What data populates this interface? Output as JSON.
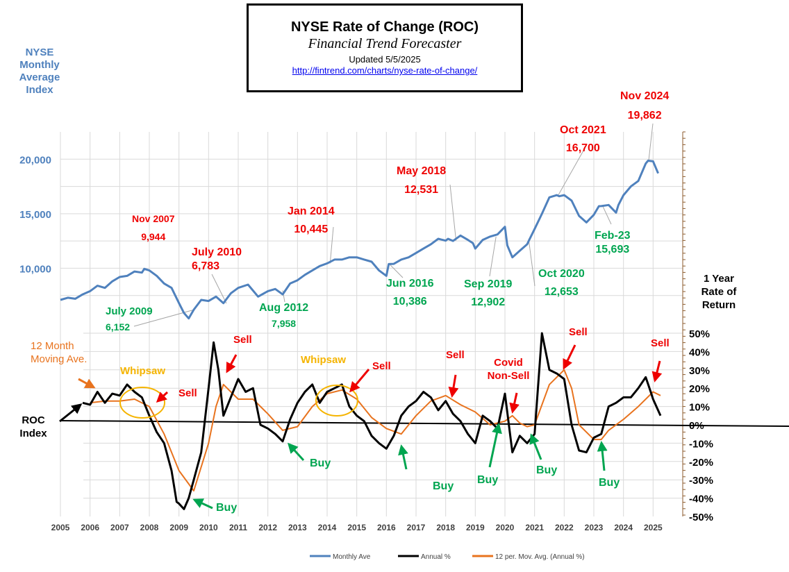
{
  "header": {
    "title": "NYSE  Rate of Change (ROC)",
    "subtitle": "Financial Trend Forecaster",
    "updated": "Updated  5/5/2025",
    "url": "http://fintrend.com/charts/nyse-rate-of-change/"
  },
  "labels": {
    "left_axis_title": "NYSE Monthly Average Index",
    "right_axis_title": "1 Year Rate of Return",
    "roc_index": "ROC Index",
    "moving_ave": "12 Month Moving Ave."
  },
  "colors": {
    "index_line": "#4f81bd",
    "roc_line": "#000000",
    "moving_avg_line": "#e8731e",
    "sell_label": "#ee0000",
    "buy_label": "#00a550",
    "whipsaw": "#f5b400"
  },
  "legend": {
    "position": "bottom",
    "items": [
      {
        "label": "Monthly Ave",
        "color": "#4f81bd"
      },
      {
        "label": "Annual %",
        "color": "#000000"
      },
      {
        "label": "12 per. Mov. Avg. (Annual %)",
        "color": "#e8731e"
      }
    ]
  },
  "chart_data": [
    {
      "type": "line",
      "series": [
        {
          "name": "Monthly Ave",
          "x": [
            2005.0,
            2005.25,
            2005.5,
            2005.75,
            2006.0,
            2006.25,
            2006.5,
            2006.75,
            2007.0,
            2007.25,
            2007.5,
            2007.75,
            2007.83,
            2008.0,
            2008.25,
            2008.5,
            2008.75,
            2009.0,
            2009.17,
            2009.33,
            2009.5,
            2009.75,
            2010.0,
            2010.25,
            2010.5,
            2010.75,
            2011.0,
            2011.33,
            2011.67,
            2012.0,
            2012.25,
            2012.5,
            2012.75,
            2013.0,
            2013.25,
            2013.5,
            2013.75,
            2014.0,
            2014.25,
            2014.5,
            2014.75,
            2015.0,
            2015.25,
            2015.5,
            2015.75,
            2016.0,
            2016.08,
            2016.25,
            2016.5,
            2016.75,
            2017.0,
            2017.25,
            2017.5,
            2017.75,
            2018.0,
            2018.08,
            2018.25,
            2018.5,
            2018.75,
            2018.92,
            2019.0,
            2019.25,
            2019.5,
            2019.75,
            2020.0,
            2020.08,
            2020.25,
            2020.5,
            2020.75,
            2020.83,
            2021.0,
            2021.25,
            2021.5,
            2021.75,
            2021.83,
            2022.0,
            2022.25,
            2022.5,
            2022.75,
            2023.0,
            2023.17,
            2023.25,
            2023.5,
            2023.75,
            2023.83,
            2024.0,
            2024.25,
            2024.5,
            2024.75,
            2024.83,
            2025.0,
            2025.17
          ],
          "values": [
            7100,
            7300,
            7200,
            7600,
            7900,
            8400,
            8200,
            8800,
            9200,
            9300,
            9700,
            9600,
            9944,
            9800,
            9300,
            8600,
            8200,
            6800,
            5900,
            5400,
            6200,
            7100,
            7000,
            7400,
            6800,
            7700,
            8200,
            8500,
            7400,
            7900,
            8100,
            7600,
            8600,
            8900,
            9400,
            9800,
            10200,
            10445,
            10800,
            10800,
            11000,
            11000,
            10800,
            10600,
            9800,
            9300,
            10386,
            10400,
            10800,
            11000,
            11400,
            11800,
            12200,
            12700,
            12531,
            12700,
            12500,
            13000,
            12600,
            12300,
            11800,
            12600,
            12902,
            13100,
            13800,
            12100,
            11000,
            11600,
            12200,
            12653,
            13600,
            15000,
            16500,
            16700,
            16600,
            16700,
            16200,
            14800,
            14200,
            14900,
            15693,
            15700,
            15800,
            15100,
            15800,
            16700,
            17500,
            18000,
            19600,
            19862,
            19800,
            18700
          ]
        }
      ],
      "ylim": [
        5000,
        22500
      ],
      "yticks": [
        "10,000",
        "15,000",
        "20,000"
      ],
      "annotations": [
        {
          "date": "Nov 2007",
          "value": "9,944",
          "color": "red"
        },
        {
          "date": "July 2009",
          "value": "6,152",
          "color": "green"
        },
        {
          "date": "July 2010",
          "value": "6,783",
          "color": "red"
        },
        {
          "date": "Aug 2012",
          "value": "7,958",
          "color": "green"
        },
        {
          "date": "Jan 2014",
          "value": "10,445",
          "color": "red"
        },
        {
          "date": "Jun 2016",
          "value": "10,386",
          "color": "green"
        },
        {
          "date": "May 2018",
          "value": "12,531",
          "color": "red"
        },
        {
          "date": "Sep 2019",
          "value": "12,902",
          "color": "green"
        },
        {
          "date": "Oct 2020",
          "value": "12,653",
          "color": "green"
        },
        {
          "date": "Oct 2021",
          "value": "16,700",
          "color": "red"
        },
        {
          "date": "Feb-23",
          "value": "15,693",
          "color": "green"
        },
        {
          "date": "Nov 2024",
          "value": "19,862",
          "color": "red"
        }
      ]
    },
    {
      "type": "line",
      "series": [
        {
          "name": "Annual %",
          "x": [
            2005.75,
            2006.0,
            2006.25,
            2006.5,
            2006.75,
            2007.0,
            2007.25,
            2007.5,
            2007.75,
            2008.0,
            2008.25,
            2008.5,
            2008.75,
            2008.92,
            2009.0,
            2009.17,
            2009.33,
            2009.5,
            2009.75,
            2010.0,
            2010.17,
            2010.33,
            2010.5,
            2010.75,
            2011.0,
            2011.25,
            2011.5,
            2011.75,
            2012.0,
            2012.25,
            2012.5,
            2012.75,
            2013.0,
            2013.25,
            2013.5,
            2013.75,
            2014.0,
            2014.25,
            2014.5,
            2014.75,
            2015.0,
            2015.25,
            2015.5,
            2015.75,
            2016.0,
            2016.25,
            2016.5,
            2016.75,
            2017.0,
            2017.25,
            2017.5,
            2017.75,
            2018.0,
            2018.25,
            2018.5,
            2018.75,
            2019.0,
            2019.25,
            2019.5,
            2019.75,
            2020.0,
            2020.25,
            2020.5,
            2020.75,
            2021.0,
            2021.25,
            2021.5,
            2021.75,
            2022.0,
            2022.25,
            2022.5,
            2022.75,
            2023.0,
            2023.25,
            2023.5,
            2023.75,
            2024.0,
            2024.25,
            2024.5,
            2024.75,
            2024.92,
            2025.0,
            2025.25
          ],
          "values": [
            12,
            11,
            18,
            12,
            17,
            16,
            22,
            18,
            15,
            5,
            -4,
            -10,
            -25,
            -42,
            -43,
            -46,
            -40,
            -30,
            -15,
            20,
            45,
            30,
            5,
            15,
            25,
            18,
            20,
            0,
            -2,
            -5,
            -9,
            3,
            12,
            18,
            22,
            12,
            18,
            20,
            22,
            10,
            5,
            2,
            -6,
            -10,
            -13,
            -6,
            5,
            10,
            13,
            18,
            15,
            8,
            13,
            6,
            2,
            -5,
            -10,
            5,
            2,
            -2,
            17,
            -15,
            -6,
            -10,
            -5,
            50,
            30,
            28,
            25,
            0,
            -14,
            -15,
            -7,
            -5,
            10,
            12,
            15,
            15,
            20,
            26,
            18,
            14,
            5
          ]
        },
        {
          "name": "12 per. Mov. Avg. (Annual %)",
          "x": [
            2006.0,
            2006.5,
            2007.0,
            2007.5,
            2008.0,
            2008.5,
            2009.0,
            2009.5,
            2010.0,
            2010.25,
            2010.5,
            2011.0,
            2011.5,
            2012.0,
            2012.5,
            2013.0,
            2013.5,
            2014.0,
            2014.5,
            2015.0,
            2015.5,
            2016.0,
            2016.5,
            2017.0,
            2017.5,
            2018.0,
            2018.5,
            2019.0,
            2019.5,
            2020.0,
            2020.25,
            2020.5,
            2020.75,
            2021.0,
            2021.5,
            2022.0,
            2022.25,
            2022.5,
            2023.0,
            2023.25,
            2023.5,
            2024.0,
            2024.5,
            2025.0,
            2025.25
          ],
          "values": [
            12,
            13,
            13,
            14,
            10,
            -5,
            -25,
            -36,
            -10,
            10,
            22,
            14,
            14,
            6,
            -3,
            -1,
            10,
            17,
            19,
            14,
            4,
            -2,
            -5,
            5,
            13,
            16,
            11,
            7,
            0,
            2,
            5,
            1,
            -1,
            0,
            22,
            30,
            20,
            0,
            -8,
            -8,
            -3,
            3,
            10,
            18,
            16
          ]
        }
      ],
      "ylim": [
        -50,
        50
      ],
      "yticks": [
        "50%",
        "40%",
        "30%",
        "20%",
        "10%",
        "0%",
        "-10%",
        "-20%",
        "-30%",
        "-40%",
        "-50%"
      ],
      "annotations": [
        {
          "text": "Sell",
          "color": "red"
        },
        {
          "text": "Sell",
          "color": "red"
        },
        {
          "text": "Sell",
          "color": "red"
        },
        {
          "text": "Sell",
          "color": "red"
        },
        {
          "text": "Covid Non-Sell",
          "color": "red"
        },
        {
          "text": "Sell",
          "color": "red"
        },
        {
          "text": "Sell",
          "color": "red"
        },
        {
          "text": "Buy",
          "color": "green"
        },
        {
          "text": "Buy",
          "color": "green"
        },
        {
          "text": "Buy",
          "color": "green"
        },
        {
          "text": "Buy",
          "color": "green"
        },
        {
          "text": "Buy",
          "color": "green"
        },
        {
          "text": "Buy",
          "color": "green"
        },
        {
          "text": "Whipsaw",
          "color": "gold"
        },
        {
          "text": "Whipsaw",
          "color": "gold"
        }
      ]
    }
  ],
  "x_axis": {
    "xlim": [
      2005,
      2026
    ],
    "ticks": [
      "2005",
      "2006",
      "2007",
      "2008",
      "2009",
      "2010",
      "2011",
      "2012",
      "2013",
      "2014",
      "2015",
      "2016",
      "2017",
      "2018",
      "2019",
      "2020",
      "2021",
      "2022",
      "2023",
      "2024",
      "2025"
    ]
  }
}
